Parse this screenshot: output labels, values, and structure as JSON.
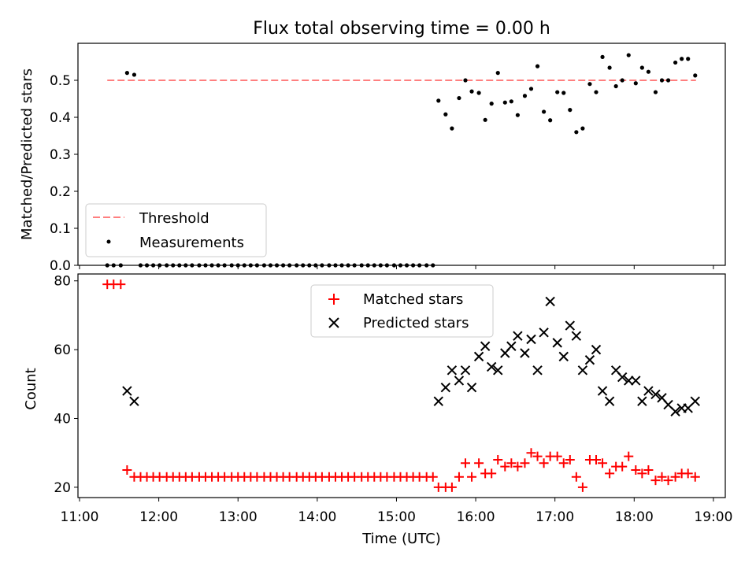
{
  "figure": {
    "title": "Flux total observing time = 0.00 h"
  },
  "chart_data": [
    {
      "type": "scatter",
      "panel": "top",
      "ylabel": "Matched/Predicted stars",
      "ylim": [
        0,
        0.6
      ],
      "yticks": [
        0.0,
        0.1,
        0.2,
        0.3,
        0.4,
        0.5
      ],
      "ytick_labels": [
        "0.0",
        "0.1",
        "0.2",
        "0.3",
        "0.4",
        "0.5"
      ],
      "xlim": [
        10.98,
        19.15
      ],
      "legend": {
        "placement": "lower-left",
        "entries": [
          {
            "label": "Threshold",
            "style": "dashed-line",
            "color": "#ff7f7f"
          },
          {
            "label": "Measurements",
            "style": "dot",
            "color": "#000000"
          }
        ]
      },
      "threshold": {
        "name": "Threshold",
        "x": [
          11.35,
          18.78
        ],
        "y": 0.5,
        "color": "#ff7f7f"
      },
      "measurements": {
        "name": "Measurements",
        "color": "#000000",
        "x": [
          11.35,
          11.43,
          11.52,
          11.6,
          11.69,
          11.77,
          11.85,
          11.93,
          12.01,
          12.1,
          12.18,
          12.26,
          12.34,
          12.42,
          12.51,
          12.59,
          12.67,
          12.75,
          12.83,
          12.92,
          13.0,
          13.08,
          13.16,
          13.24,
          13.33,
          13.41,
          13.49,
          13.57,
          13.65,
          13.74,
          13.82,
          13.9,
          13.98,
          14.06,
          14.15,
          14.23,
          14.31,
          14.39,
          14.47,
          14.56,
          14.64,
          14.72,
          14.8,
          14.88,
          14.97,
          15.05,
          15.13,
          15.21,
          15.29,
          15.38,
          15.46,
          15.53,
          15.62,
          15.7,
          15.79,
          15.87,
          15.95,
          16.04,
          16.12,
          16.2,
          16.28,
          16.37,
          16.45,
          16.53,
          16.62,
          16.7,
          16.78,
          16.86,
          16.94,
          17.03,
          17.11,
          17.19,
          17.27,
          17.35,
          17.44,
          17.52,
          17.6,
          17.69,
          17.77,
          17.85,
          17.93,
          18.02,
          18.1,
          18.18,
          18.27,
          18.35,
          18.43,
          18.52,
          18.6,
          18.68,
          18.77
        ],
        "y": [
          0,
          0,
          0,
          0.52,
          0.515,
          0,
          0,
          0,
          0,
          0,
          0,
          0,
          0,
          0,
          0,
          0,
          0,
          0,
          0,
          0,
          0,
          0,
          0,
          0,
          0,
          0,
          0,
          0,
          0,
          0,
          0,
          0,
          0,
          0,
          0,
          0,
          0,
          0,
          0,
          0,
          0,
          0,
          0,
          0,
          0,
          0,
          0,
          0,
          0,
          0,
          0,
          0.445,
          0.408,
          0.37,
          0.452,
          0.5,
          0.47,
          0.466,
          0.393,
          0.437,
          0.52,
          0.44,
          0.443,
          0.406,
          0.458,
          0.477,
          0.538,
          0.415,
          0.392,
          0.468,
          0.466,
          0.42,
          0.36,
          0.37,
          0.49,
          0.468,
          0.563,
          0.534,
          0.484,
          0.5,
          0.568,
          0.492,
          0.534,
          0.523,
          0.468,
          0.5,
          0.5,
          0.548,
          0.558,
          0.558,
          0.513
        ]
      }
    },
    {
      "type": "scatter",
      "panel": "bottom",
      "xlabel": "Time (UTC)",
      "ylabel": "Count",
      "ylim": [
        17,
        82
      ],
      "yticks": [
        20,
        40,
        60,
        80
      ],
      "ytick_labels": [
        "20",
        "40",
        "60",
        "80"
      ],
      "xlim": [
        10.98,
        19.15
      ],
      "xticks": [
        11,
        12,
        13,
        14,
        15,
        16,
        17,
        18,
        19
      ],
      "xtick_labels": [
        "11:00",
        "12:00",
        "13:00",
        "14:00",
        "15:00",
        "16:00",
        "17:00",
        "18:00",
        "19:00"
      ],
      "legend": {
        "placement": "upper-center",
        "entries": [
          {
            "label": "Matched stars",
            "style": "plus",
            "color": "#ff0000"
          },
          {
            "label": "Predicted stars",
            "style": "cross",
            "color": "#000000"
          }
        ]
      },
      "series": [
        {
          "name": "Matched stars",
          "marker": "plus",
          "color": "#ff0000",
          "x": [
            11.35,
            11.43,
            11.52,
            11.6,
            11.69,
            11.77,
            11.85,
            11.93,
            12.01,
            12.1,
            12.18,
            12.26,
            12.34,
            12.42,
            12.51,
            12.59,
            12.67,
            12.75,
            12.83,
            12.92,
            13.0,
            13.08,
            13.16,
            13.24,
            13.33,
            13.41,
            13.49,
            13.57,
            13.65,
            13.74,
            13.82,
            13.9,
            13.98,
            14.06,
            14.15,
            14.23,
            14.31,
            14.39,
            14.47,
            14.56,
            14.64,
            14.72,
            14.8,
            14.88,
            14.97,
            15.05,
            15.13,
            15.21,
            15.29,
            15.38,
            15.46,
            15.53,
            15.62,
            15.7,
            15.79,
            15.87,
            15.95,
            16.04,
            16.12,
            16.2,
            16.28,
            16.37,
            16.45,
            16.53,
            16.62,
            16.7,
            16.78,
            16.86,
            16.94,
            17.03,
            17.11,
            17.19,
            17.27,
            17.35,
            17.44,
            17.52,
            17.6,
            17.69,
            17.77,
            17.85,
            17.93,
            18.02,
            18.1,
            18.18,
            18.27,
            18.35,
            18.43,
            18.52,
            18.6,
            18.68,
            18.77
          ],
          "y": [
            79,
            79,
            79,
            25,
            23,
            23,
            23,
            23,
            23,
            23,
            23,
            23,
            23,
            23,
            23,
            23,
            23,
            23,
            23,
            23,
            23,
            23,
            23,
            23,
            23,
            23,
            23,
            23,
            23,
            23,
            23,
            23,
            23,
            23,
            23,
            23,
            23,
            23,
            23,
            23,
            23,
            23,
            23,
            23,
            23,
            23,
            23,
            23,
            23,
            23,
            23,
            20,
            20,
            20,
            23,
            27,
            23,
            27,
            24,
            24,
            28,
            26,
            27,
            26,
            27,
            30,
            29,
            27,
            29,
            29,
            27,
            28,
            23,
            20,
            28,
            28,
            27,
            24,
            26,
            26,
            29,
            25,
            24,
            25,
            22,
            23,
            22,
            23,
            24,
            24,
            23
          ]
        },
        {
          "name": "Predicted stars",
          "marker": "cross",
          "color": "#000000",
          "x": [
            11.6,
            11.69,
            15.53,
            15.62,
            15.7,
            15.79,
            15.87,
            15.95,
            16.04,
            16.12,
            16.2,
            16.28,
            16.37,
            16.45,
            16.53,
            16.62,
            16.7,
            16.78,
            16.86,
            16.94,
            17.03,
            17.11,
            17.19,
            17.27,
            17.35,
            17.44,
            17.52,
            17.6,
            17.69,
            17.77,
            17.85,
            17.93,
            18.02,
            18.1,
            18.18,
            18.27,
            18.35,
            18.43,
            18.52,
            18.6,
            18.68,
            18.77
          ],
          "y": [
            48,
            45,
            45,
            49,
            54,
            51,
            54,
            49,
            58,
            61,
            55,
            54,
            59,
            61,
            64,
            59,
            63,
            54,
            65,
            74,
            62,
            58,
            67,
            64,
            54,
            57,
            60,
            48,
            45,
            54,
            52,
            51,
            51,
            45,
            48,
            47,
            46,
            44,
            42,
            43,
            43,
            45
          ]
        }
      ]
    }
  ]
}
